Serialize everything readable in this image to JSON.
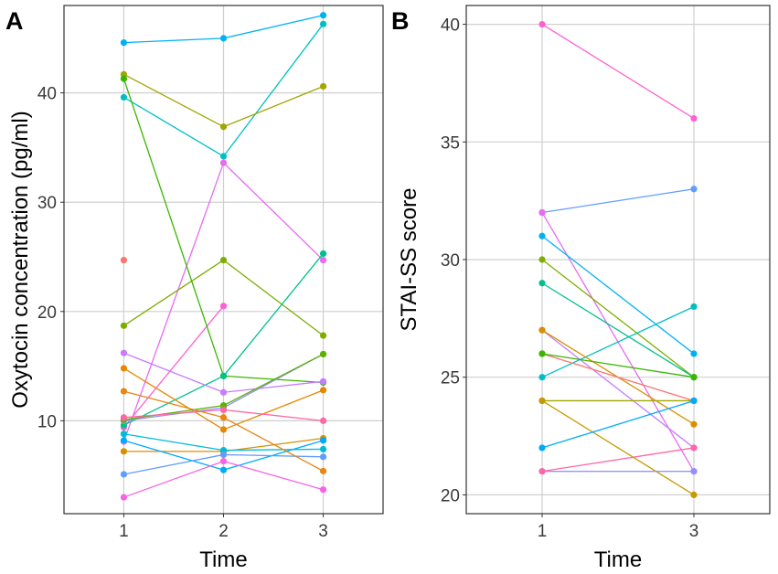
{
  "chart_data": [
    {
      "type": "line",
      "panel_label": "A",
      "title": "",
      "xlabel": "Time",
      "ylabel": "Oxytocin concentration (pg/ml)",
      "x": [
        1,
        2,
        3
      ],
      "x_tick_labels": [
        "1",
        "2",
        "3"
      ],
      "xlim": [
        0.4,
        3.6
      ],
      "ylim": [
        1.5,
        48
      ],
      "y_ticks": [
        10,
        20,
        30,
        40
      ],
      "y_tick_labels": [
        "10",
        "20",
        "30",
        "40"
      ],
      "grid": true,
      "legend": "none",
      "series": [
        {
          "name": "s1",
          "color": "#00b0f6",
          "values": [
            44.6,
            45.0,
            47.1
          ]
        },
        {
          "name": "s2",
          "color": "#00bfc4",
          "values": [
            39.6,
            34.2,
            46.3
          ]
        },
        {
          "name": "s3",
          "color": "#a3a500",
          "values": [
            41.7,
            36.9,
            40.6
          ]
        },
        {
          "name": "s4",
          "color": "#e76bf3",
          "values": [
            8.1,
            33.6,
            24.7
          ]
        },
        {
          "name": "s5",
          "color": "#f8766d",
          "values": [
            24.7,
            null,
            null
          ]
        },
        {
          "name": "s6",
          "color": "#fd61d1",
          "values": [
            9.4,
            20.5,
            null
          ]
        },
        {
          "name": "s7",
          "color": "#7cae00",
          "values": [
            18.7,
            24.7,
            17.8
          ]
        },
        {
          "name": "s8",
          "color": "#39b600",
          "values": [
            41.3,
            14.1,
            13.5
          ]
        },
        {
          "name": "s9",
          "color": "#00c08b",
          "values": [
            9.6,
            14.1,
            25.3
          ]
        },
        {
          "name": "s10",
          "color": "#c77cff",
          "values": [
            16.2,
            12.6,
            13.6
          ]
        },
        {
          "name": "s11",
          "color": "#e58700",
          "values": [
            14.8,
            9.2,
            12.8
          ]
        },
        {
          "name": "s12",
          "color": "#9590ff",
          "values": [
            10.0,
            11.2,
            16.1
          ]
        },
        {
          "name": "s13",
          "color": "#5bb300",
          "values": [
            10.1,
            11.4,
            16.1
          ]
        },
        {
          "name": "s14",
          "color": "#ff67a4",
          "values": [
            10.3,
            11.0,
            10.0
          ]
        },
        {
          "name": "s15",
          "color": "#d89000",
          "values": [
            7.2,
            7.2,
            8.4
          ]
        },
        {
          "name": "s16",
          "color": "#00bcd8",
          "values": [
            8.8,
            7.3,
            7.4
          ]
        },
        {
          "name": "s17",
          "color": "#00a9ff",
          "values": [
            8.2,
            5.5,
            8.2
          ]
        },
        {
          "name": "s18",
          "color": "#619cff",
          "values": [
            5.1,
            6.9,
            6.7
          ]
        },
        {
          "name": "s19",
          "color": "#f564e3",
          "values": [
            3.0,
            6.3,
            3.7
          ]
        },
        {
          "name": "s20",
          "color": "#e68613",
          "values": [
            12.7,
            10.3,
            5.4
          ]
        }
      ]
    },
    {
      "type": "line",
      "panel_label": "B",
      "title": "",
      "xlabel": "Time",
      "ylabel": "STAI-SS score",
      "x": [
        1,
        3
      ],
      "x_tick_labels": [
        "1",
        "3"
      ],
      "xlim": [
        0,
        4
      ],
      "ylim": [
        19.2,
        40.8
      ],
      "y_ticks": [
        20,
        25,
        30,
        35,
        40
      ],
      "y_tick_labels": [
        "20",
        "25",
        "30",
        "35",
        "40"
      ],
      "grid": true,
      "legend": "none",
      "series": [
        {
          "name": "s1",
          "color": "#fd61d1",
          "values": [
            40,
            36
          ]
        },
        {
          "name": "s2",
          "color": "#619cff",
          "values": [
            32,
            33
          ]
        },
        {
          "name": "s3",
          "color": "#e76bf3",
          "values": [
            32,
            21
          ]
        },
        {
          "name": "s4",
          "color": "#00b0f6",
          "values": [
            31,
            26
          ]
        },
        {
          "name": "s5",
          "color": "#7cae00",
          "values": [
            30,
            25
          ]
        },
        {
          "name": "s6",
          "color": "#00c08b",
          "values": [
            29,
            25
          ]
        },
        {
          "name": "s7",
          "color": "#00bfc4",
          "values": [
            25,
            28
          ]
        },
        {
          "name": "s8",
          "color": "#c77cff",
          "values": [
            27,
            22
          ]
        },
        {
          "name": "s9",
          "color": "#d89000",
          "values": [
            27,
            23
          ]
        },
        {
          "name": "s10",
          "color": "#f8766d",
          "values": [
            26,
            24
          ]
        },
        {
          "name": "s11",
          "color": "#39b600",
          "values": [
            26,
            25
          ]
        },
        {
          "name": "s12",
          "color": "#a3a500",
          "values": [
            24,
            24
          ]
        },
        {
          "name": "s13",
          "color": "#c49a00",
          "values": [
            24,
            20
          ]
        },
        {
          "name": "s14",
          "color": "#00a9ff",
          "values": [
            22,
            24
          ]
        },
        {
          "name": "s15",
          "color": "#9590ff",
          "values": [
            21,
            21
          ]
        },
        {
          "name": "s16",
          "color": "#ff67a4",
          "values": [
            21,
            22
          ]
        }
      ]
    }
  ]
}
